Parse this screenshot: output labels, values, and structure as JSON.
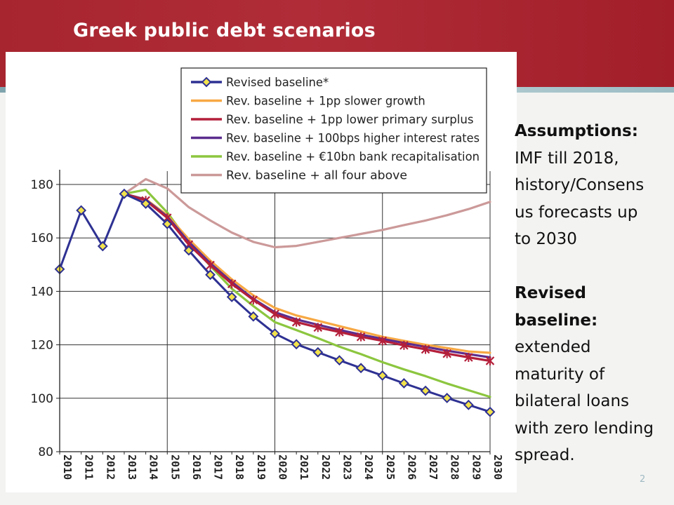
{
  "slide": {
    "title": "Greek public debt scenarios",
    "page_number": "2"
  },
  "notes": {
    "assumptions_heading": "Assumptions:",
    "assumptions_lines": [
      "IMF till 2018,",
      "history/Consens",
      "us forecasts up",
      "to 2030"
    ],
    "revised_heading_lines": [
      "Revised",
      "baseline:"
    ],
    "revised_lines": [
      "extended",
      "maturity of",
      "bilateral loans",
      "with zero lending",
      "spread."
    ]
  },
  "colors": {
    "banner": "#a7252f",
    "baseline": "#2e3192",
    "slower_growth": "#f7a843",
    "lower_surplus": "#b41f3a",
    "higher_rates": "#5b2d8e",
    "recap": "#8cc63f",
    "all_four": "#cc9999",
    "marker_fill": "#f2e24c"
  },
  "chart_data": {
    "type": "line",
    "title": "",
    "xlabel": "",
    "ylabel": "",
    "ylim": [
      80,
      185
    ],
    "y_ticks": [
      "80",
      "100",
      "120",
      "140",
      "160",
      "180"
    ],
    "x_ticks": [
      "2010",
      "2011",
      "2012",
      "2013",
      "2014",
      "2015",
      "2016",
      "2017",
      "2018",
      "2019",
      "2020",
      "2021",
      "2022",
      "2023",
      "2024",
      "2025",
      "2026",
      "2027",
      "2028",
      "2029",
      "2030"
    ],
    "grid_x_years": [
      2015,
      2020,
      2025,
      2030
    ],
    "grid_y_values": [
      100,
      120,
      140,
      160,
      180
    ],
    "legend_position": "top-right",
    "series": [
      {
        "name": "Revised baseline*",
        "key": "baseline",
        "marker": "diamond",
        "x": [
          2010,
          2011,
          2012,
          2013,
          2014,
          2015,
          2016,
          2017,
          2018,
          2019,
          2020,
          2021,
          2022,
          2023,
          2024,
          2025,
          2026,
          2027,
          2028,
          2029,
          2030
        ],
        "y": [
          148.3,
          170.3,
          156.9,
          176.5,
          172.8,
          165.2,
          155.3,
          146.2,
          137.9,
          130.6,
          124.2,
          120.2,
          117.2,
          114.2,
          111.3,
          108.5,
          105.6,
          102.8,
          100.1,
          97.5,
          94.9
        ]
      },
      {
        "name": "Rev. baseline + 1pp slower growth",
        "key": "slower_growth",
        "marker": "none",
        "x": [
          2013,
          2014,
          2015,
          2016,
          2017,
          2018,
          2019,
          2020,
          2021,
          2022,
          2023,
          2024,
          2025,
          2026,
          2027,
          2028,
          2029,
          2030
        ],
        "y": [
          176.5,
          174.5,
          168.5,
          159.5,
          151.5,
          144.5,
          138.5,
          133.8,
          131,
          129,
          127,
          125,
          123,
          121.5,
          120,
          118.8,
          117.5,
          117
        ]
      },
      {
        "name": "Rev. baseline + 1pp lower primary surplus",
        "key": "lower_surplus",
        "marker": "asterisk",
        "x": [
          2013,
          2014,
          2015,
          2016,
          2017,
          2018,
          2019,
          2020,
          2021,
          2022,
          2023,
          2024,
          2025,
          2026,
          2027,
          2028,
          2029,
          2030
        ],
        "y": [
          176.5,
          174,
          167.5,
          157.5,
          149.8,
          142.8,
          136.8,
          131.5,
          128.5,
          126.5,
          124.8,
          123,
          121.5,
          119.8,
          118.3,
          116.7,
          115.3,
          114
        ]
      },
      {
        "name": "Rev. baseline + 100bps higher interest rates",
        "key": "higher_rates",
        "marker": "none",
        "x": [
          2013,
          2014,
          2015,
          2016,
          2017,
          2018,
          2019,
          2020,
          2021,
          2022,
          2023,
          2024,
          2025,
          2026,
          2027,
          2028,
          2029,
          2030
        ],
        "y": [
          176.5,
          174.3,
          168,
          158.5,
          150.5,
          143.5,
          137.2,
          132.2,
          129.5,
          127.5,
          125.6,
          123.8,
          122.2,
          120.7,
          119.2,
          117.8,
          116.5,
          115.3
        ]
      },
      {
        "name": "Rev. baseline + €10bn bank recapitalisation",
        "key": "recap",
        "marker": "none",
        "x": [
          2013,
          2014,
          2015,
          2016,
          2017,
          2018,
          2019,
          2020,
          2021,
          2022,
          2023,
          2024,
          2025,
          2026,
          2027,
          2028,
          2029,
          2030
        ],
        "y": [
          176.5,
          178,
          169.5,
          158.5,
          149.5,
          141,
          134.5,
          128.5,
          125.5,
          122.5,
          119.3,
          116.5,
          113.5,
          110.8,
          108.3,
          105.5,
          103,
          100.5
        ]
      },
      {
        "name": "Rev. baseline + all four above",
        "key": "all_four",
        "marker": "none",
        "x": [
          2013,
          2014,
          2015,
          2016,
          2017,
          2018,
          2019,
          2020,
          2021,
          2022,
          2023,
          2024,
          2025,
          2026,
          2027,
          2028,
          2029,
          2030
        ],
        "y": [
          176.5,
          182,
          178.5,
          171.5,
          166.5,
          162,
          158.5,
          156.5,
          157,
          158.5,
          160,
          161.5,
          163,
          164.8,
          166.5,
          168.5,
          170.8,
          173.5
        ]
      }
    ]
  }
}
